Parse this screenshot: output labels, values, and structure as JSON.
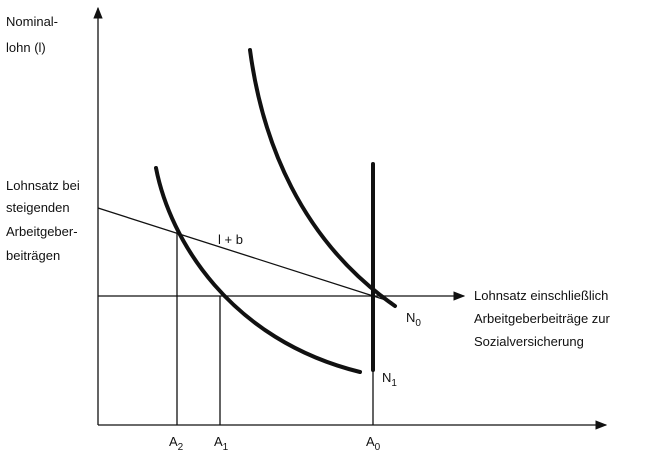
{
  "y_axis_label": [
    "Nominal-",
    "lohn (l)"
  ],
  "rising_rate_label": [
    "Lohnsatz bei",
    "steigenden",
    "Arbeitgeber-",
    "beiträgen"
  ],
  "line_label": "l + b",
  "rate_label": [
    "Lohnsatz einschließlich",
    "Arbeitgeberbeiträge zur",
    "Sozialversicherung"
  ],
  "curves": [
    {
      "base": "N",
      "sub": "0"
    },
    {
      "base": "N",
      "sub": "1"
    }
  ],
  "x_labels": [
    {
      "base": "A",
      "sub": "2"
    },
    {
      "base": "A",
      "sub": "1"
    },
    {
      "base": "A",
      "sub": "0"
    }
  ]
}
